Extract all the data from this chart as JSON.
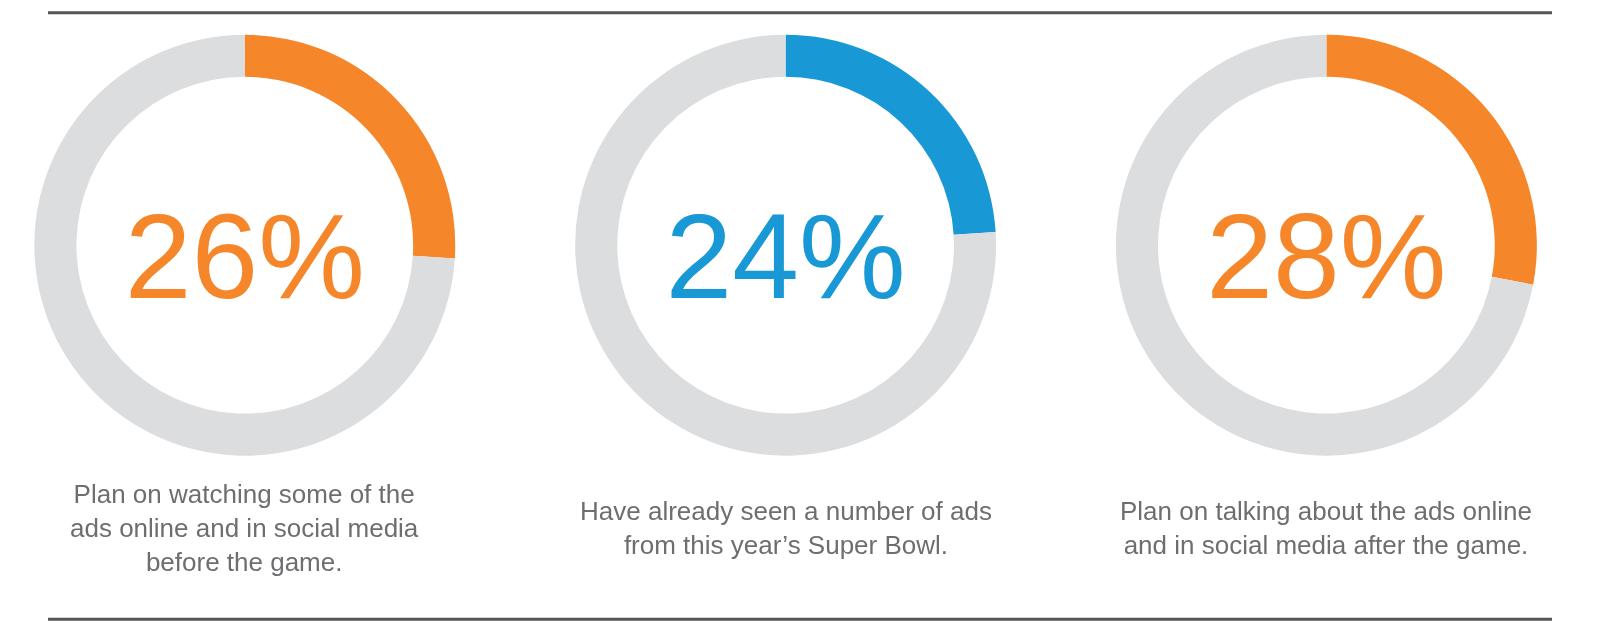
{
  "chart_data": [
    {
      "type": "donut",
      "title": "26%",
      "categories": [
        null,
        null
      ],
      "values": [
        26,
        74
      ],
      "colors": [
        "#f5862a",
        "#dcdddf"
      ],
      "annotations": [
        "Plan on watching some of the\nads online and in social media\nbefore the game."
      ]
    },
    {
      "type": "donut",
      "title": "24%",
      "categories": [
        null,
        null
      ],
      "values": [
        24,
        76
      ],
      "colors": [
        "#1899d6",
        "#dcdddf"
      ],
      "annotations": [
        "Have already seen a number of ads\nfrom this year’s Super Bowl."
      ]
    },
    {
      "type": "donut",
      "title": "28%",
      "categories": [
        null,
        null
      ],
      "values": [
        28,
        72
      ],
      "colors": [
        "#f5862a",
        "#dcdddf"
      ],
      "annotations": [
        "Plan on talking about the ads online\nand in social media after the game."
      ]
    }
  ]
}
